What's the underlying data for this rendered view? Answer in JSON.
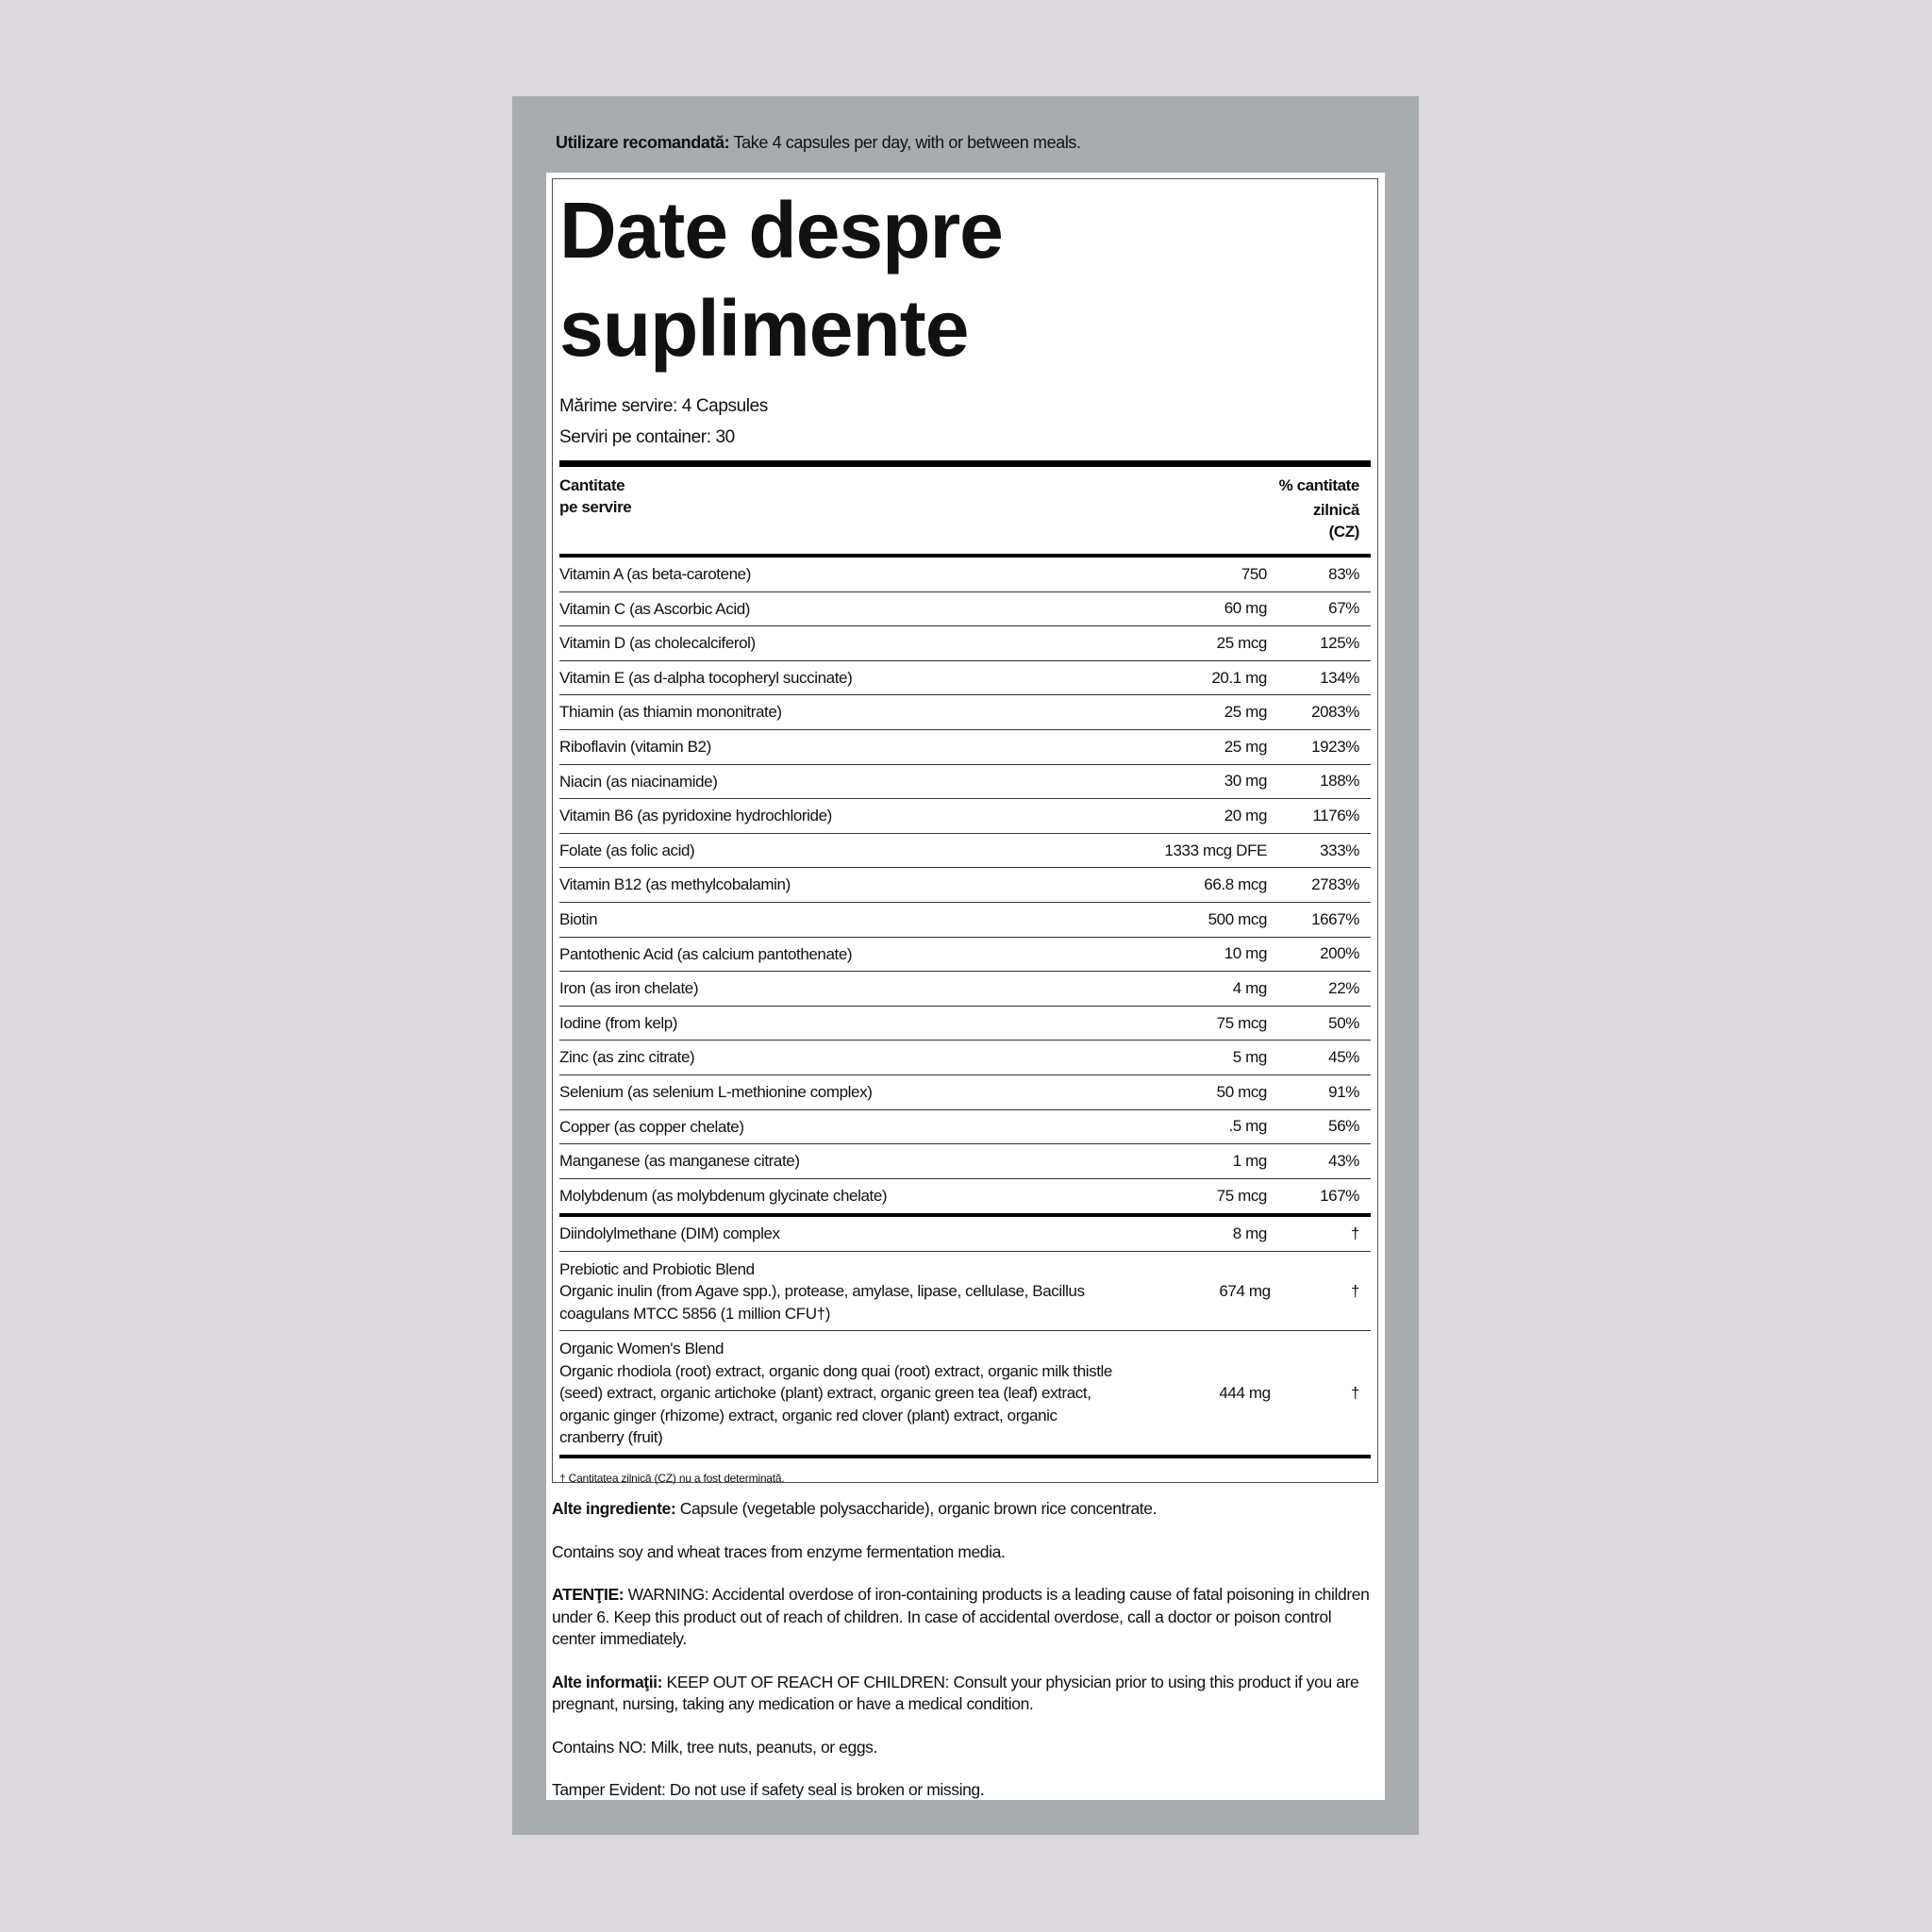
{
  "usage": {
    "label": "Utilizare recomandată:",
    "text": "Take 4 capsules per day, with or between meals."
  },
  "facts": {
    "title": [
      "Date despre",
      "suplimente"
    ],
    "serving_size": "Mărime servire: 4 Capsules",
    "servings": "Serviri pe container: 30",
    "header": {
      "amount": [
        "Cantitate",
        "pe servire"
      ],
      "dv": [
        "% cantitate",
        "zilnică",
        "(CZ)"
      ]
    },
    "rows": [
      [
        "Vitamin A (as beta-carotene)",
        "750",
        "83%"
      ],
      [
        "Vitamin C (as Ascorbic Acid)",
        "60 mg",
        "67%"
      ],
      [
        "Vitamin D (as cholecalciferol)",
        "25 mcg",
        "125%"
      ],
      [
        "Vitamin E (as d-alpha tocopheryl succinate)",
        "20.1 mg",
        "134%"
      ],
      [
        "Thiamin (as thiamin mononitrate)",
        "25 mg",
        "2083%"
      ],
      [
        "Riboflavin (vitamin B2)",
        "25 mg",
        "1923%"
      ],
      [
        "Niacin (as niacinamide)",
        "30 mg",
        "188%"
      ],
      [
        "Vitamin B6 (as pyridoxine hydrochloride)",
        "20 mg",
        "1176%"
      ],
      [
        "Folate (as folic acid)",
        "1333 mcg DFE",
        "333%"
      ],
      [
        "Vitamin B12 (as methylcobalamin)",
        "66.8 mcg",
        "2783%"
      ],
      [
        "Biotin",
        "500 mcg",
        "1667%"
      ],
      [
        "Pantothenic Acid (as calcium pantothenate)",
        "10 mg",
        "200%"
      ],
      [
        "Iron (as iron chelate)",
        "4 mg",
        "22%"
      ],
      [
        "Iodine (from kelp)",
        "75 mcg",
        "50%"
      ],
      [
        "Zinc (as zinc citrate)",
        "5 mg",
        "45%"
      ],
      [
        "Selenium (as selenium L-methionine complex)",
        "50 mcg",
        "91%"
      ],
      [
        "Copper (as copper chelate)",
        ".5 mg",
        "56%"
      ],
      [
        "Manganese (as manganese citrate)",
        "1 mg",
        "43%"
      ],
      [
        "Molybdenum (as molybdenum glycinate chelate)",
        "75 mcg",
        "167%"
      ]
    ],
    "blends": [
      {
        "name": "Diindolylmethane (DIM) complex",
        "amount": "8 mg",
        "dv": "†"
      },
      {
        "name": "Prebiotic and Probiotic Blend",
        "description": "Organic inulin (from Agave spp.), protease, amylase, lipase, cellulase, Bacillus coagulans MTCC 5856 (1 million CFU†)",
        "amount": "674 mg",
        "dv": "†"
      },
      {
        "name": "Organic Women's Blend",
        "description": "Organic rhodiola (root) extract, organic dong quai (root) extract, organic milk thistle (seed) extract, organic artichoke (plant) extract, organic green tea (leaf) extract, organic ginger (rhizome) extract, organic red clover (plant) extract, organic cranberry (fruit)",
        "amount": "444 mg",
        "dv": "†"
      }
    ],
    "footnote": "† Cantitatea zilnică (CZ) nu a fost determinată."
  },
  "notes": [
    {
      "label": "Alte ingrediente:",
      "text": "Capsule (vegetable polysaccharide), organic brown rice concentrate."
    },
    {
      "text": "Contains soy and wheat traces from enzyme fermentation media."
    },
    {
      "label": "ATENŢIE:",
      "text": "WARNING: Accidental overdose of iron-containing products is a leading cause of fatal poisoning in children under 6. Keep this product out of reach of children. In case of accidental overdose, call a doctor or poison control center immediately."
    },
    {
      "label": "Alte informaţii:",
      "text": "KEEP OUT OF REACH OF CHILDREN: Consult your physician prior to using this product if you are pregnant, nursing, taking any medication or have a medical condition."
    },
    {
      "text": "Contains NO: Milk, tree nuts, peanuts, or eggs."
    },
    {
      "text": "Tamper Evident: Do not use if safety seal is broken or missing."
    }
  ]
}
